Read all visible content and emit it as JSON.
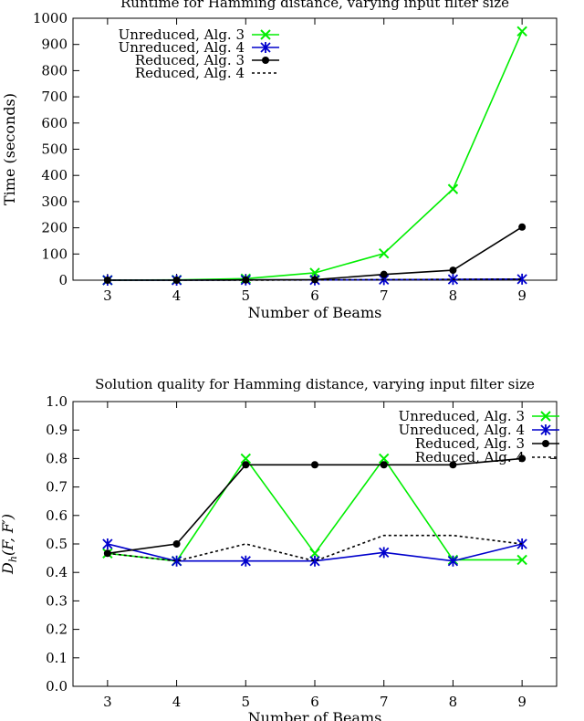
{
  "chart_data": [
    {
      "type": "line",
      "title": "Runtime for Hamming distance, varying input filter size",
      "xlabel": "Number of Beams",
      "ylabel": "Time (seconds)",
      "x": [
        3,
        4,
        5,
        6,
        7,
        8,
        9
      ],
      "xlim": [
        2.5,
        9.5
      ],
      "ylim": [
        0,
        1000
      ],
      "yticks": [
        0,
        100,
        200,
        300,
        400,
        500,
        600,
        700,
        800,
        900,
        1000
      ],
      "legend_position": "top-left",
      "series": [
        {
          "name": "Unreduced, Alg. 3",
          "values": [
            0,
            1,
            6,
            28,
            102,
            348,
            950
          ],
          "color": "#00ee00",
          "marker": "x",
          "dash": ""
        },
        {
          "name": "Unreduced, Alg. 4",
          "values": [
            0,
            0,
            1,
            1,
            2,
            3,
            4
          ],
          "color": "#0000cc",
          "marker": "star",
          "dash": ""
        },
        {
          "name": "Reduced, Alg. 3",
          "values": [
            0,
            0,
            1,
            2,
            22,
            38,
            203
          ],
          "color": "#000000",
          "marker": "dot",
          "dash": ""
        },
        {
          "name": "Reduced, Alg. 4",
          "values": [
            0,
            0,
            0,
            1,
            2,
            3,
            4
          ],
          "color": "#000000",
          "marker": "none",
          "dash": "3,3"
        }
      ]
    },
    {
      "type": "line",
      "title": "Solution quality for Hamming distance, varying input filter size",
      "xlabel": "Number of Beams",
      "ylabel_main": "D",
      "ylabel_sub": "h",
      "ylabel_args": "(F, F′)",
      "x": [
        3,
        4,
        5,
        6,
        7,
        8,
        9
      ],
      "xlim": [
        2.5,
        9.5
      ],
      "ylim": [
        0,
        1
      ],
      "yticks": [
        0.0,
        0.1,
        0.2,
        0.3,
        0.4,
        0.5,
        0.6,
        0.7,
        0.8,
        0.9,
        1.0
      ],
      "legend_position": "top-right",
      "series": [
        {
          "name": "Unreduced, Alg. 3",
          "values": [
            0.467,
            0.44,
            0.8,
            0.467,
            0.8,
            0.444,
            0.444
          ],
          "color": "#00ee00",
          "marker": "x",
          "dash": ""
        },
        {
          "name": "Unreduced, Alg. 4",
          "values": [
            0.5,
            0.44,
            0.44,
            0.44,
            0.47,
            0.44,
            0.5
          ],
          "color": "#0000cc",
          "marker": "star",
          "dash": ""
        },
        {
          "name": "Reduced, Alg. 3",
          "values": [
            0.467,
            0.5,
            0.778,
            0.778,
            0.778,
            0.778,
            0.8
          ],
          "color": "#000000",
          "marker": "dot",
          "dash": ""
        },
        {
          "name": "Reduced, Alg. 4",
          "values": [
            0.467,
            0.44,
            0.5,
            0.44,
            0.53,
            0.53,
            0.5
          ],
          "color": "#000000",
          "marker": "none",
          "dash": "3,3"
        }
      ]
    }
  ]
}
